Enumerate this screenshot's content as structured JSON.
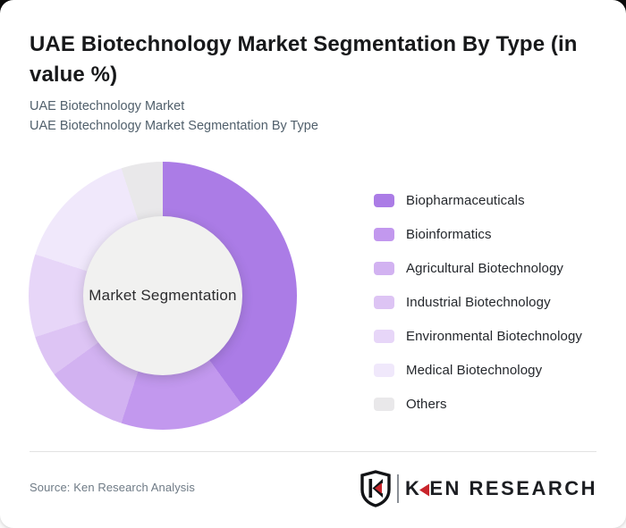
{
  "page": {
    "title": "UAE Biotechnology Market Segmentation By Type (in value %)",
    "subtitle_line1": "UAE Biotechnology Market",
    "subtitle_line2": "UAE Biotechnology Market Segmentation By Type",
    "source": "Source: Ken Research Analysis",
    "brand": {
      "emblem_letter": "K",
      "wordmark_first_letter": "K",
      "wordmark_rest": "EN RESEARCH",
      "accent_color": "#c9252c",
      "text_color": "#1c1e22"
    }
  },
  "chart_data": {
    "type": "pie",
    "variant": "donut",
    "title": "UAE Biotechnology Market Segmentation By Type (in value %)",
    "unit": "value %",
    "center_label": "Market Segmentation",
    "start_angle_deg": 0,
    "direction": "clockwise",
    "legend_position": "right",
    "hole_color": "#f1f1f0",
    "segments": [
      {
        "label": "Biopharmaceuticals",
        "value": 40,
        "color": "#ab7ce6"
      },
      {
        "label": "Bioinformatics",
        "value": 15,
        "color": "#c298ee"
      },
      {
        "label": "Agricultural Biotechnology",
        "value": 10,
        "color": "#d2b2f1"
      },
      {
        "label": "Industrial Biotechnology",
        "value": 5,
        "color": "#ddc4f4"
      },
      {
        "label": "Environmental Biotechnology",
        "value": 10,
        "color": "#e7d6f8"
      },
      {
        "label": "Medical Biotechnology",
        "value": 15,
        "color": "#f0e8fb"
      },
      {
        "label": "Others",
        "value": 5,
        "color": "#e9e8ea"
      }
    ]
  }
}
